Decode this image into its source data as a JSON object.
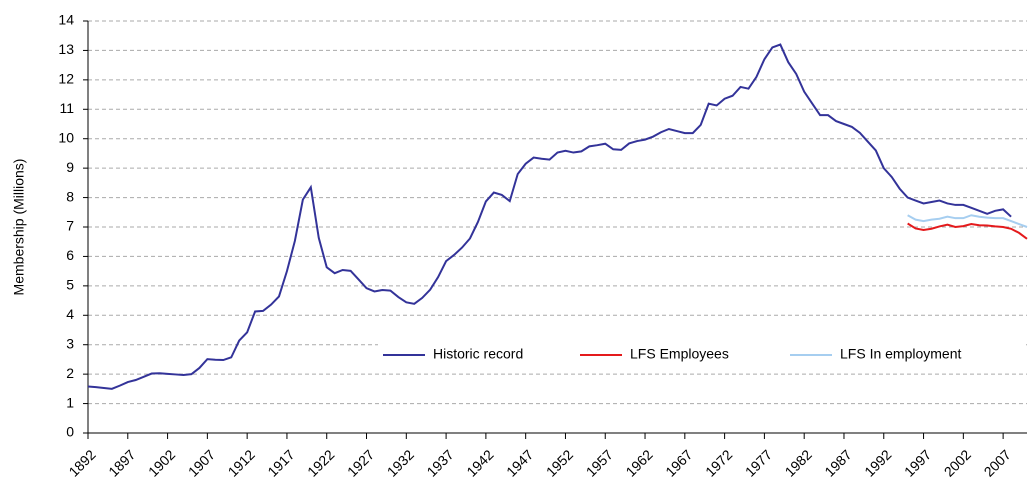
{
  "chart_data": {
    "type": "line",
    "y_label": "Membership (Millions)",
    "xlim": [
      1892,
      2010
    ],
    "xticks": [
      1892,
      1897,
      1902,
      1907,
      1912,
      1917,
      1922,
      1927,
      1932,
      1937,
      1942,
      1947,
      1952,
      1957,
      1962,
      1967,
      1972,
      1977,
      1982,
      1987,
      1992,
      1997,
      2002,
      2007
    ],
    "ylim": [
      0,
      14
    ],
    "yticks": [
      0,
      1,
      2,
      3,
      4,
      5,
      6,
      7,
      8,
      9,
      10,
      11,
      12,
      13,
      14
    ],
    "grid": true,
    "legend": "lower right",
    "series": [
      {
        "name": "Historic record",
        "color": "#333399",
        "x": [
          1892,
          1893,
          1894,
          1895,
          1896,
          1897,
          1898,
          1899,
          1900,
          1901,
          1902,
          1903,
          1904,
          1905,
          1906,
          1907,
          1908,
          1909,
          1910,
          1911,
          1912,
          1913,
          1914,
          1915,
          1916,
          1917,
          1918,
          1919,
          1920,
          1921,
          1922,
          1923,
          1924,
          1925,
          1926,
          1927,
          1928,
          1929,
          1930,
          1931,
          1932,
          1933,
          1934,
          1935,
          1936,
          1937,
          1938,
          1939,
          1940,
          1941,
          1942,
          1943,
          1944,
          1945,
          1946,
          1947,
          1948,
          1949,
          1950,
          1951,
          1952,
          1953,
          1954,
          1955,
          1956,
          1957,
          1958,
          1959,
          1960,
          1961,
          1962,
          1963,
          1964,
          1965,
          1966,
          1967,
          1968,
          1969,
          1970,
          1971,
          1972,
          1973,
          1974,
          1975,
          1976,
          1977,
          1978,
          1979,
          1980,
          1981,
          1982,
          1983,
          1984,
          1985,
          1986,
          1987,
          1988,
          1989,
          1990,
          1991,
          1992,
          1993,
          1994,
          1995,
          1996,
          1997,
          1998,
          1999,
          2000,
          2001,
          2002,
          2003,
          2004,
          2005,
          2006,
          2007,
          2008
        ],
        "values": [
          1.58,
          1.56,
          1.53,
          1.5,
          1.61,
          1.73,
          1.8,
          1.91,
          2.02,
          2.03,
          2.01,
          1.99,
          1.97,
          2.0,
          2.21,
          2.51,
          2.49,
          2.48,
          2.57,
          3.14,
          3.42,
          4.13,
          4.15,
          4.36,
          4.64,
          5.5,
          6.53,
          7.93,
          8.35,
          6.63,
          5.63,
          5.43,
          5.54,
          5.51,
          5.22,
          4.92,
          4.81,
          4.86,
          4.84,
          4.62,
          4.44,
          4.39,
          4.59,
          4.87,
          5.3,
          5.84,
          6.05,
          6.3,
          6.61,
          7.17,
          7.87,
          8.17,
          8.09,
          7.88,
          8.8,
          9.15,
          9.36,
          9.32,
          9.29,
          9.53,
          9.59,
          9.53,
          9.57,
          9.74,
          9.78,
          9.83,
          9.64,
          9.62,
          9.84,
          9.92,
          9.97,
          10.07,
          10.22,
          10.33,
          10.26,
          10.19,
          10.19,
          10.47,
          11.19,
          11.13,
          11.36,
          11.46,
          11.76,
          11.7,
          12.1,
          12.7,
          13.1,
          13.2,
          12.6,
          12.2,
          11.6,
          11.2,
          10.8,
          10.8,
          10.6,
          10.5,
          10.4,
          10.2,
          9.9,
          9.6,
          9.0,
          8.7,
          8.3,
          8.0,
          7.9,
          7.8,
          7.85,
          7.9,
          7.8,
          7.75,
          7.75,
          7.65,
          7.55,
          7.45,
          7.55,
          7.6,
          7.35
        ]
      },
      {
        "name": "LFS Employees",
        "color": "#e41a1c",
        "x": [
          1995,
          1996,
          1997,
          1998,
          1999,
          2000,
          2001,
          2002,
          2003,
          2004,
          2005,
          2006,
          2007,
          2008,
          2009,
          2010
        ],
        "values": [
          7.12,
          6.95,
          6.9,
          6.94,
          7.02,
          7.08,
          7.0,
          7.03,
          7.1,
          7.06,
          7.05,
          7.02,
          7.0,
          6.94,
          6.8,
          6.6
        ]
      },
      {
        "name": "LFS In employment",
        "color": "#a6cef0",
        "x": [
          1995,
          1996,
          1997,
          1998,
          1999,
          2000,
          2001,
          2002,
          2003,
          2004,
          2005,
          2006,
          2007,
          2008,
          2009,
          2010
        ],
        "values": [
          7.4,
          7.25,
          7.2,
          7.25,
          7.28,
          7.35,
          7.3,
          7.3,
          7.4,
          7.35,
          7.32,
          7.3,
          7.3,
          7.2,
          7.1,
          7.0
        ]
      }
    ]
  }
}
